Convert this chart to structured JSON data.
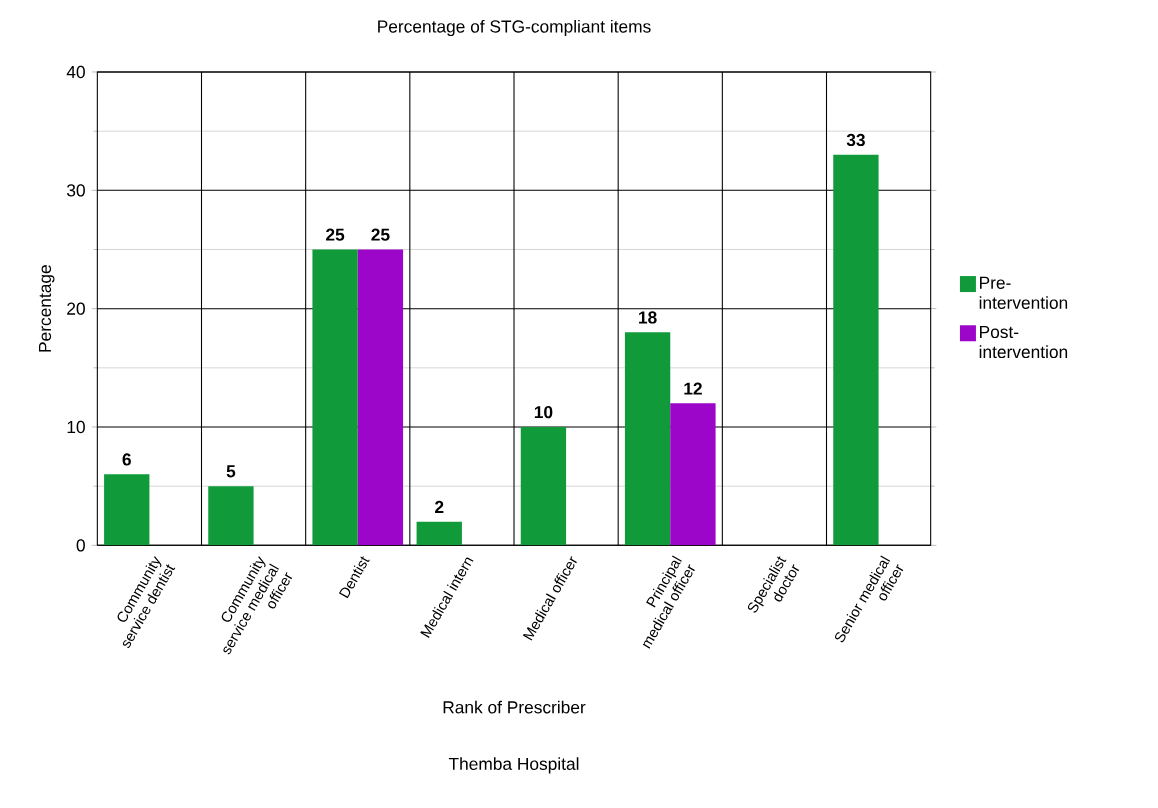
{
  "chart_data": {
    "type": "bar",
    "title": "Percentage of STG-compliant items",
    "xlabel": "Rank of Prescriber",
    "ylabel": "Percentage",
    "annotations": [
      "Themba Hospital"
    ],
    "categories": [
      "Community service dentist",
      "Community service medical officer",
      "Dentist",
      "Medical intern",
      "Medical officer",
      "Principal medical officer",
      "Specialist doctor",
      "Senior medical officer"
    ],
    "series": [
      {
        "name": "Pre-intervention",
        "color": "#109a3a",
        "values": [
          6,
          5,
          25,
          2,
          10,
          18,
          null,
          33
        ]
      },
      {
        "name": "Post-intervention",
        "color": "#9b06c9",
        "values": [
          null,
          null,
          25,
          null,
          null,
          12,
          null,
          null
        ]
      }
    ],
    "ylim": [
      0,
      40
    ],
    "yticks": [
      0,
      10,
      20,
      30,
      40
    ],
    "grid": true,
    "legend": "right",
    "data_labels": true
  }
}
